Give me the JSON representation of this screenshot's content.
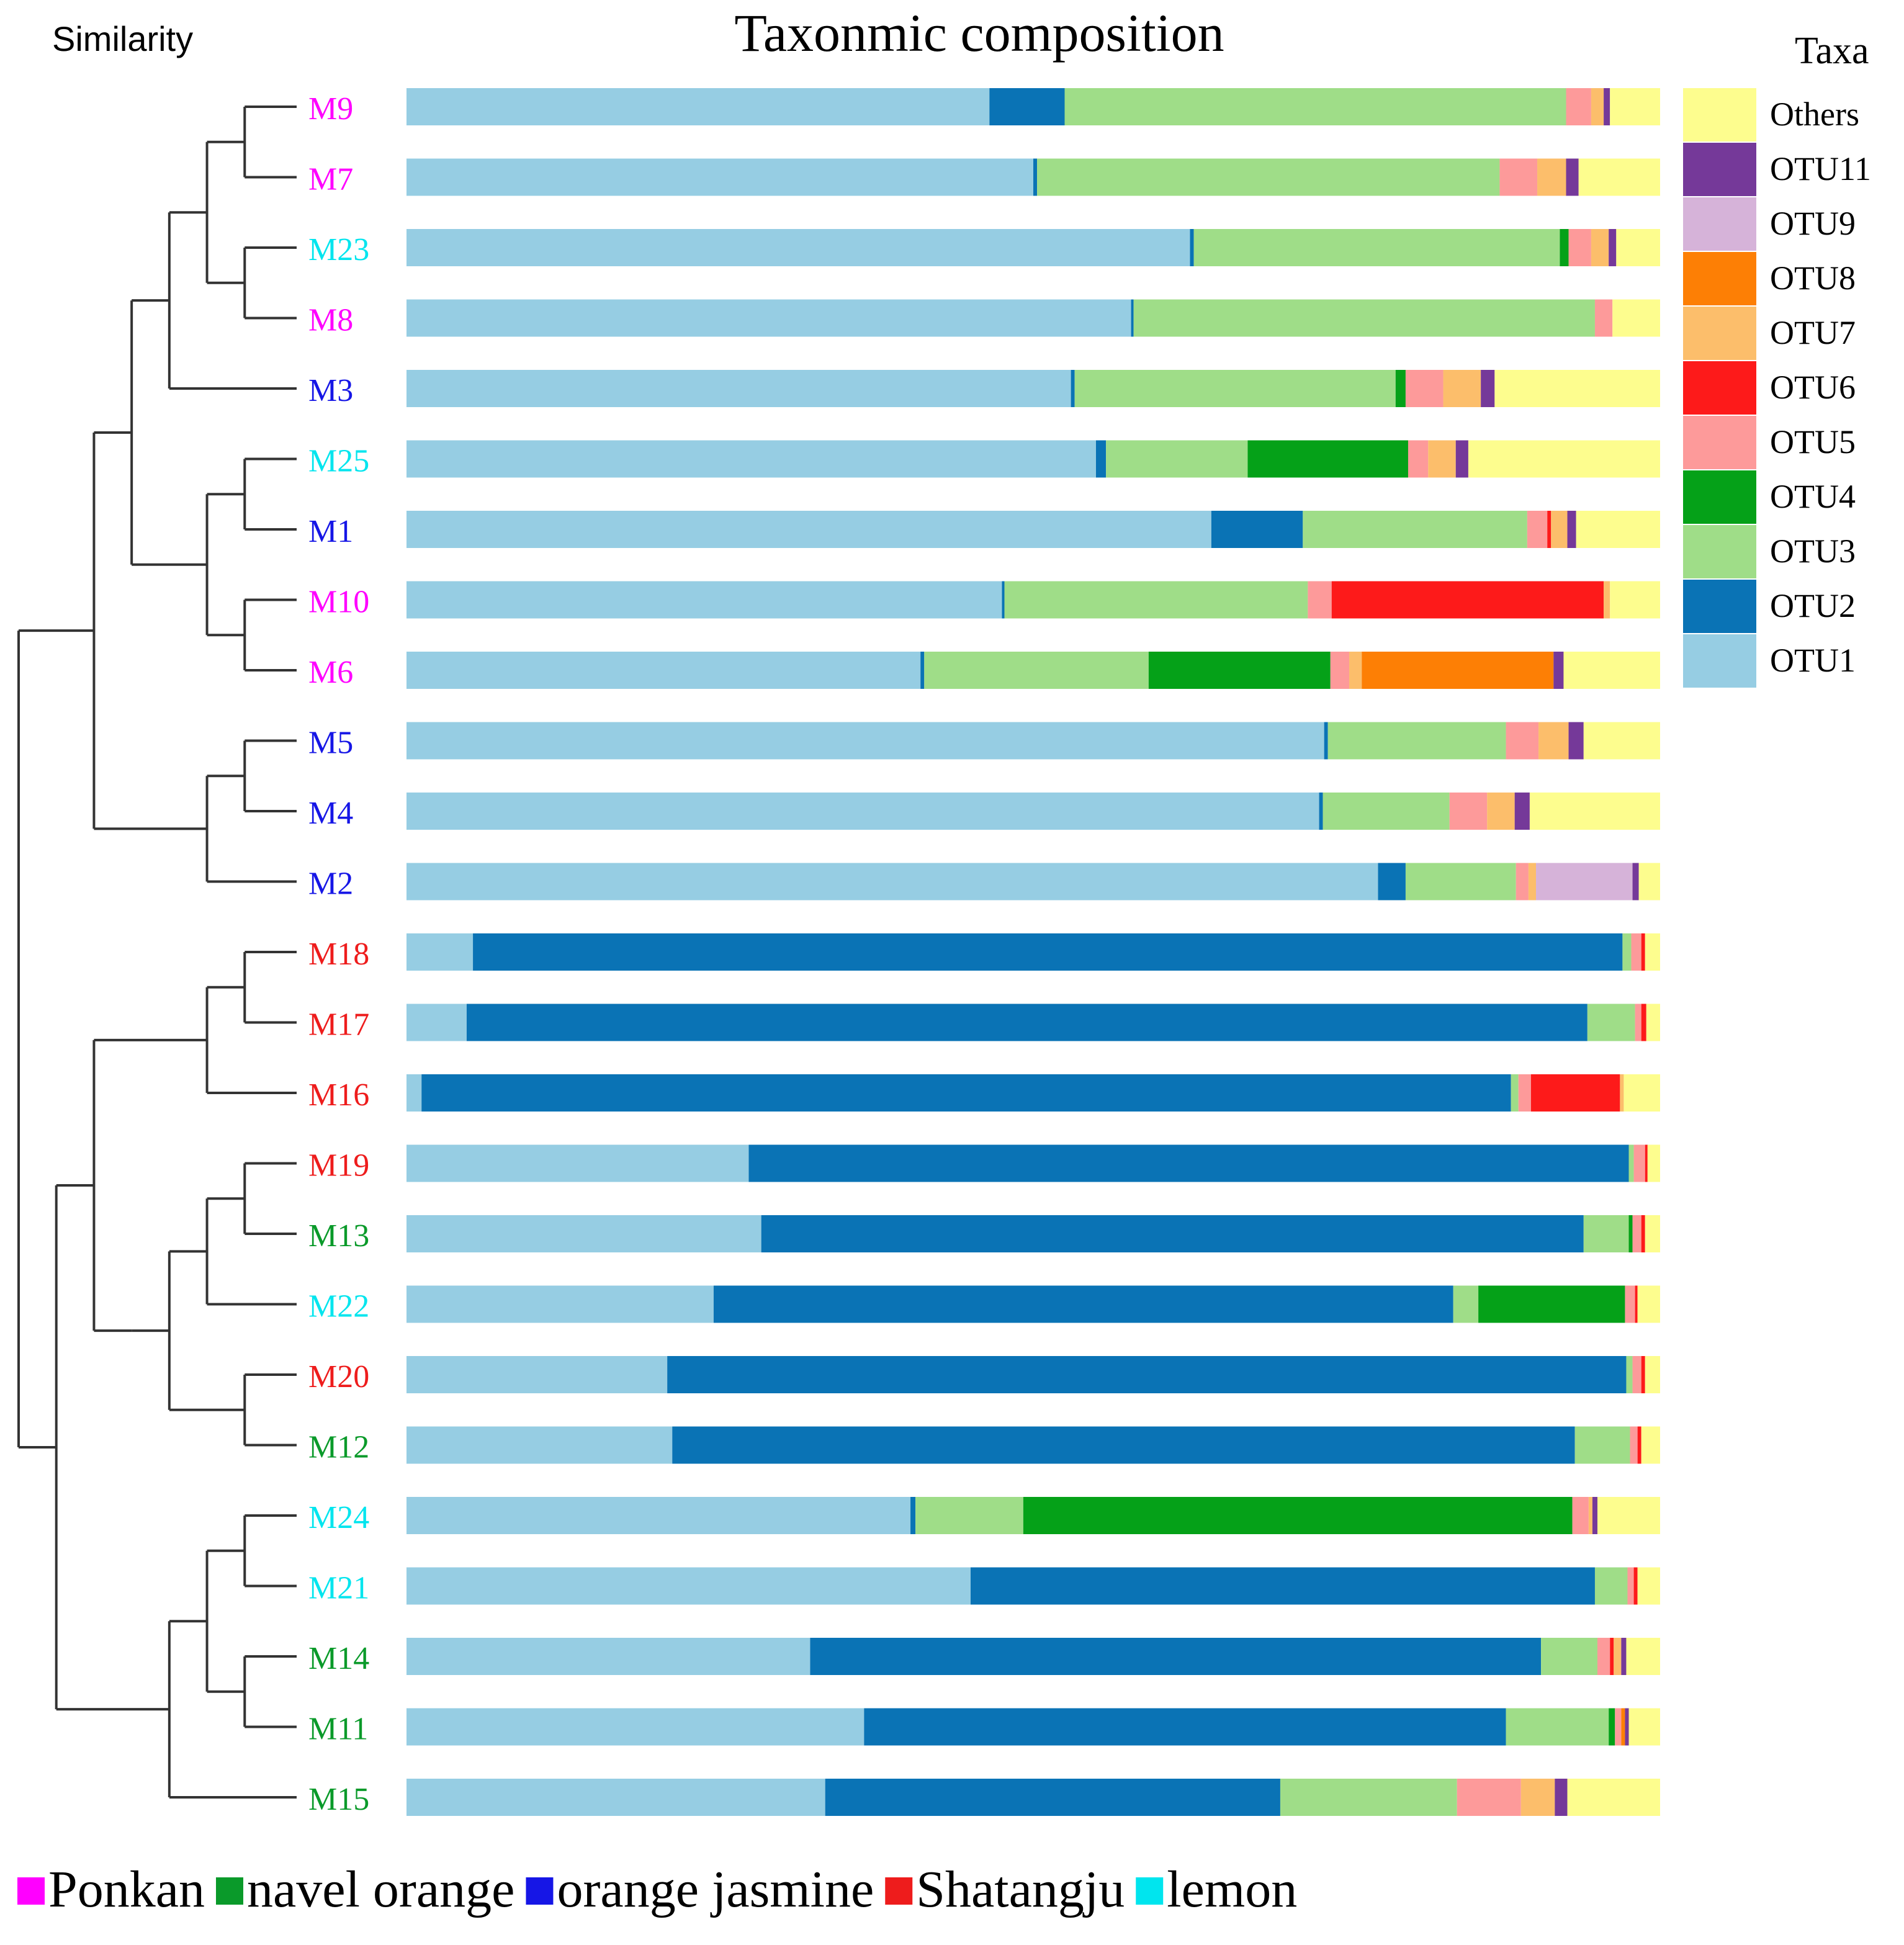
{
  "chart_data": {
    "type": "bar",
    "orientation": "horizontal-stacked-100",
    "title": "Taxonmic composition",
    "dendrogram_label": "Similarity",
    "legend_title": "Taxa",
    "legend_placement": "top-right",
    "taxa": [
      {
        "name": "OTU1",
        "color": "#96cde3"
      },
      {
        "name": "OTU2",
        "color": "#0a73b5"
      },
      {
        "name": "OTU3",
        "color": "#9fdd88"
      },
      {
        "name": "OTU4",
        "color": "#05a118"
      },
      {
        "name": "OTU5",
        "color": "#fd9a9a"
      },
      {
        "name": "OTU6",
        "color": "#fd1a1a"
      },
      {
        "name": "OTU7",
        "color": "#fcbe6b"
      },
      {
        "name": "OTU8",
        "color": "#fd7f05"
      },
      {
        "name": "OTU9",
        "color": "#d6b3d9"
      },
      {
        "name": "OTU11",
        "color": "#753999"
      },
      {
        "name": "Others",
        "color": "#fdfd8e"
      }
    ],
    "legend_order": [
      "Others",
      "OTU11",
      "OTU9",
      "OTU8",
      "OTU7",
      "OTU6",
      "OTU5",
      "OTU4",
      "OTU3",
      "OTU2",
      "OTU1"
    ],
    "groups": [
      {
        "name": "Ponkan",
        "color": "#ff00ff"
      },
      {
        "name": "navel orange",
        "color": "#0a9a2a"
      },
      {
        "name": "orange jasmine",
        "color": "#1616e6"
      },
      {
        "name": "Shatangju",
        "color": "#ee1c1c"
      },
      {
        "name": "lemon",
        "color": "#00e5ee"
      }
    ],
    "samples": [
      {
        "name": "M9",
        "group": "Ponkan",
        "values": {
          "OTU1": 46.5,
          "OTU2": 6.0,
          "OTU3": 40.0,
          "OTU5": 2.0,
          "OTU7": 1.0,
          "OTU11": 0.5,
          "Others": 4.0
        }
      },
      {
        "name": "M7",
        "group": "Ponkan",
        "values": {
          "OTU1": 50.0,
          "OTU2": 0.3,
          "OTU3": 36.9,
          "OTU5": 3.0,
          "OTU7": 2.3,
          "OTU11": 1.0,
          "Others": 6.5
        }
      },
      {
        "name": "M23",
        "group": "lemon",
        "values": {
          "OTU1": 62.5,
          "OTU2": 0.3,
          "OTU3": 29.2,
          "OTU4": 0.7,
          "OTU5": 1.8,
          "OTU7": 1.4,
          "OTU11": 0.6,
          "Others": 3.5
        }
      },
      {
        "name": "M8",
        "group": "Ponkan",
        "values": {
          "OTU1": 57.8,
          "OTU2": 0.2,
          "OTU3": 36.8,
          "OTU5": 1.4,
          "Others": 3.8
        }
      },
      {
        "name": "M3",
        "group": "orange jasmine",
        "values": {
          "OTU1": 53.0,
          "OTU2": 0.3,
          "OTU3": 25.6,
          "OTU4": 0.8,
          "OTU5": 3.0,
          "OTU7": 3.0,
          "OTU11": 1.1,
          "Others": 13.2
        }
      },
      {
        "name": "M25",
        "group": "lemon",
        "values": {
          "OTU1": 55.0,
          "OTU2": 0.8,
          "OTU3": 11.3,
          "OTU4": 12.8,
          "OTU5": 1.6,
          "OTU7": 2.2,
          "OTU11": 1.0,
          "Others": 15.3
        }
      },
      {
        "name": "M1",
        "group": "orange jasmine",
        "values": {
          "OTU1": 64.2,
          "OTU2": 7.3,
          "OTU3": 17.9,
          "OTU5": 1.6,
          "OTU6": 0.3,
          "OTU7": 1.3,
          "OTU11": 0.7,
          "Others": 6.7
        }
      },
      {
        "name": "M10",
        "group": "Ponkan",
        "values": {
          "OTU1": 47.5,
          "OTU2": 0.2,
          "OTU3": 24.2,
          "OTU5": 1.9,
          "OTU6": 21.7,
          "OTU7": 0.5,
          "Others": 4.0
        }
      },
      {
        "name": "M6",
        "group": "Ponkan",
        "values": {
          "OTU1": 41.0,
          "OTU2": 0.3,
          "OTU3": 17.9,
          "OTU4": 14.5,
          "OTU5": 1.5,
          "OTU7": 1.0,
          "OTU8": 15.3,
          "OTU11": 0.8,
          "Others": 7.7
        }
      },
      {
        "name": "M5",
        "group": "orange jasmine",
        "values": {
          "OTU1": 73.2,
          "OTU2": 0.3,
          "OTU3": 14.2,
          "OTU5": 2.6,
          "OTU7": 2.4,
          "OTU11": 1.2,
          "Others": 6.1
        }
      },
      {
        "name": "M4",
        "group": "orange jasmine",
        "values": {
          "OTU1": 72.8,
          "OTU2": 0.3,
          "OTU3": 10.1,
          "OTU5": 3.0,
          "OTU7": 2.2,
          "OTU11": 1.2,
          "Others": 10.4
        }
      },
      {
        "name": "M2",
        "group": "orange jasmine",
        "values": {
          "OTU1": 77.5,
          "OTU2": 2.2,
          "OTU3": 8.8,
          "OTU5": 1.0,
          "OTU7": 0.6,
          "OTU9": 7.7,
          "OTU11": 0.5,
          "Others": 1.7
        }
      },
      {
        "name": "M18",
        "group": "Shatangju",
        "values": {
          "OTU1": 5.3,
          "OTU2": 91.7,
          "OTU3": 0.7,
          "OTU5": 0.8,
          "OTU6": 0.3,
          "Others": 1.2
        }
      },
      {
        "name": "M17",
        "group": "Shatangju",
        "values": {
          "OTU1": 4.8,
          "OTU2": 89.4,
          "OTU3": 3.8,
          "OTU5": 0.5,
          "OTU6": 0.4,
          "Others": 1.1
        }
      },
      {
        "name": "M16",
        "group": "Shatangju",
        "values": {
          "OTU1": 1.2,
          "OTU2": 86.9,
          "OTU3": 0.6,
          "OTU5": 1.0,
          "OTU6": 7.1,
          "OTU7": 0.3,
          "Others": 2.9
        }
      },
      {
        "name": "M19",
        "group": "Shatangju",
        "values": {
          "OTU1": 27.3,
          "OTU2": 70.2,
          "OTU3": 0.4,
          "OTU5": 0.9,
          "OTU6": 0.2,
          "Others": 1.0
        }
      },
      {
        "name": "M13",
        "group": "navel orange",
        "values": {
          "OTU1": 28.3,
          "OTU2": 65.6,
          "OTU3": 3.6,
          "OTU4": 0.3,
          "OTU5": 0.7,
          "OTU6": 0.3,
          "Others": 1.2
        }
      },
      {
        "name": "M22",
        "group": "lemon",
        "values": {
          "OTU1": 24.5,
          "OTU2": 59.0,
          "OTU3": 2.0,
          "OTU4": 11.7,
          "OTU5": 0.8,
          "OTU6": 0.2,
          "Others": 1.8
        }
      },
      {
        "name": "M20",
        "group": "Shatangju",
        "values": {
          "OTU1": 20.8,
          "OTU2": 76.5,
          "OTU3": 0.5,
          "OTU5": 0.7,
          "OTU6": 0.3,
          "Others": 1.2
        }
      },
      {
        "name": "M12",
        "group": "navel orange",
        "values": {
          "OTU1": 21.2,
          "OTU2": 72.0,
          "OTU3": 4.4,
          "OTU5": 0.6,
          "OTU6": 0.3,
          "Others": 1.5
        }
      },
      {
        "name": "M24",
        "group": "lemon",
        "values": {
          "OTU1": 40.2,
          "OTU2": 0.4,
          "OTU3": 8.6,
          "OTU4": 43.8,
          "OTU5": 1.3,
          "OTU7": 0.3,
          "OTU11": 0.4,
          "Others": 5.0
        }
      },
      {
        "name": "M21",
        "group": "lemon",
        "values": {
          "OTU1": 45.0,
          "OTU2": 49.8,
          "OTU3": 2.6,
          "OTU5": 0.5,
          "OTU6": 0.3,
          "Others": 1.8
        }
      },
      {
        "name": "M14",
        "group": "navel orange",
        "values": {
          "OTU1": 32.2,
          "OTU2": 58.3,
          "OTU3": 4.5,
          "OTU5": 1.0,
          "OTU6": 0.3,
          "OTU7": 0.6,
          "OTU11": 0.4,
          "Others": 2.7
        }
      },
      {
        "name": "M11",
        "group": "navel orange",
        "values": {
          "OTU1": 36.5,
          "OTU2": 51.2,
          "OTU3": 8.2,
          "OTU4": 0.5,
          "OTU5": 0.5,
          "OTU8": 0.3,
          "OTU11": 0.3,
          "Others": 2.5
        }
      },
      {
        "name": "M15",
        "group": "navel orange",
        "values": {
          "OTU1": 33.4,
          "OTU2": 36.3,
          "OTU3": 14.1,
          "OTU5": 5.1,
          "OTU7": 2.7,
          "OTU11": 1.0,
          "Others": 7.4
        }
      }
    ],
    "dendrogram": {
      "type": "hierarchical-clustering",
      "tree": [
        [
          [
            [
              [
                [
                  "M9",
                  "M7"
                ],
                [
                  "M23",
                  "M8"
                ]
              ],
              "M3"
            ],
            [
              [
                "M25",
                "M1"
              ],
              [
                "M10",
                "M6"
              ]
            ]
          ],
          [
            [
              "M5",
              "M4"
            ],
            "M2"
          ]
        ],
        [
          [
            [
              [
                "M18",
                "M17"
              ],
              "M16"
            ],
            [
              [
                [
                  [
                    "M19",
                    "M13"
                  ],
                  "M22"
                ],
                [
                  "M20",
                  "M12"
                ]
              ]
            ]
          ],
          [
            [
              [
                "M24",
                "M21"
              ],
              [
                "M14",
                "M11"
              ]
            ],
            "M15"
          ]
        ]
      ]
    }
  }
}
